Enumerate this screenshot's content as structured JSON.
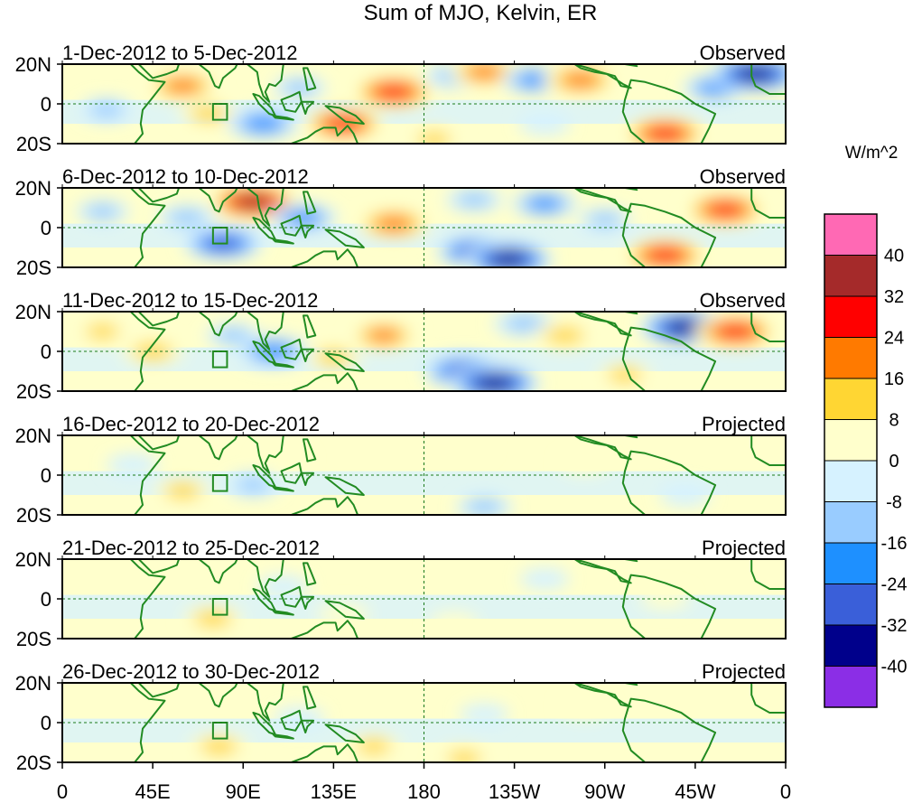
{
  "chart_data": {
    "type": "heatmap",
    "title": "Sum of MJO, Kelvin, ER",
    "colorbar": {
      "label": "W/m^2",
      "colors": [
        "#8b2ee6",
        "#00008b",
        "#3a5fd9",
        "#1e90ff",
        "#99ccff",
        "#d6f2ff",
        "#ffffcc",
        "#ffd633",
        "#ff7a00",
        "#ff0000",
        "#a52a2a",
        "#ff69b4"
      ],
      "tick_labels": [
        "-40",
        "-32",
        "-24",
        "-16",
        "-8",
        "0",
        "8",
        "16",
        "24",
        "32",
        "40"
      ]
    },
    "x_ticks": [
      "0",
      "45E",
      "90E",
      "135E",
      "180",
      "135W",
      "90W",
      "45W",
      "0"
    ],
    "y_ticks": [
      "20N",
      "0",
      "20S"
    ],
    "xlim_lon": [
      0,
      360
    ],
    "ylim_lat": [
      -20,
      20
    ],
    "panels": [
      {
        "period": "1-Dec-2012 to 5-Dec-2012",
        "status": "Observed",
        "anomalies": [
          {
            "lon": 60,
            "lat": 9,
            "value": 22
          },
          {
            "lon": 73,
            "lat": -5,
            "value": 14
          },
          {
            "lon": 22,
            "lat": -3,
            "value": -10
          },
          {
            "lon": 100,
            "lat": -10,
            "value": -24
          },
          {
            "lon": 140,
            "lat": -10,
            "value": 28
          },
          {
            "lon": 165,
            "lat": 6,
            "value": 30
          },
          {
            "lon": 118,
            "lat": 8,
            "value": -10
          },
          {
            "lon": 195,
            "lat": 14,
            "value": -14
          },
          {
            "lon": 210,
            "lat": 16,
            "value": 20
          },
          {
            "lon": 235,
            "lat": 12,
            "value": -18
          },
          {
            "lon": 258,
            "lat": 12,
            "value": 24
          },
          {
            "lon": 300,
            "lat": -15,
            "value": 30
          },
          {
            "lon": 325,
            "lat": 8,
            "value": -18
          },
          {
            "lon": 345,
            "lat": 15,
            "value": -36
          },
          {
            "lon": 185,
            "lat": -18,
            "value": 10
          },
          {
            "lon": 240,
            "lat": -10,
            "value": -8
          }
        ]
      },
      {
        "period": "6-Dec-2012 to 10-Dec-2012",
        "status": "Observed",
        "anomalies": [
          {
            "lon": 95,
            "lat": 13,
            "value": 34
          },
          {
            "lon": 80,
            "lat": -8,
            "value": -28
          },
          {
            "lon": 62,
            "lat": 5,
            "value": -14
          },
          {
            "lon": 120,
            "lat": 5,
            "value": -20
          },
          {
            "lon": 165,
            "lat": 2,
            "value": 24
          },
          {
            "lon": 205,
            "lat": -12,
            "value": -26
          },
          {
            "lon": 222,
            "lat": -16,
            "value": -34
          },
          {
            "lon": 205,
            "lat": 14,
            "value": -12
          },
          {
            "lon": 240,
            "lat": 12,
            "value": -18
          },
          {
            "lon": 300,
            "lat": -14,
            "value": 30
          },
          {
            "lon": 330,
            "lat": 9,
            "value": 28
          },
          {
            "lon": 270,
            "lat": 4,
            "value": -10
          },
          {
            "lon": 20,
            "lat": 8,
            "value": -10
          }
        ]
      },
      {
        "period": "11-Dec-2012 to 15-Dec-2012",
        "status": "Observed",
        "anomalies": [
          {
            "lon": 20,
            "lat": 10,
            "value": 10
          },
          {
            "lon": 45,
            "lat": 0,
            "value": 16
          },
          {
            "lon": 85,
            "lat": 8,
            "value": -10
          },
          {
            "lon": 105,
            "lat": 0,
            "value": -24
          },
          {
            "lon": 135,
            "lat": -3,
            "value": 12
          },
          {
            "lon": 160,
            "lat": 8,
            "value": 18
          },
          {
            "lon": 200,
            "lat": -10,
            "value": -30
          },
          {
            "lon": 215,
            "lat": -16,
            "value": -36
          },
          {
            "lon": 230,
            "lat": 14,
            "value": -16
          },
          {
            "lon": 250,
            "lat": 8,
            "value": 16
          },
          {
            "lon": 310,
            "lat": 12,
            "value": -36
          },
          {
            "lon": 335,
            "lat": 10,
            "value": 30
          },
          {
            "lon": 280,
            "lat": -12,
            "value": 10
          }
        ]
      },
      {
        "period": "16-Dec-2012 to 20-Dec-2012",
        "status": "Projected",
        "anomalies": [
          {
            "lon": 60,
            "lat": -8,
            "value": 12
          },
          {
            "lon": 110,
            "lat": 8,
            "value": 8
          },
          {
            "lon": 95,
            "lat": -5,
            "value": -10
          },
          {
            "lon": 200,
            "lat": 14,
            "value": 8
          },
          {
            "lon": 210,
            "lat": -16,
            "value": -12
          },
          {
            "lon": 260,
            "lat": 6,
            "value": 6
          },
          {
            "lon": 310,
            "lat": -10,
            "value": -8
          },
          {
            "lon": 35,
            "lat": 5,
            "value": -8
          }
        ]
      },
      {
        "period": "21-Dec-2012 to 25-Dec-2012",
        "status": "Projected",
        "anomalies": [
          {
            "lon": 75,
            "lat": -10,
            "value": 14
          },
          {
            "lon": 110,
            "lat": 6,
            "value": -8
          },
          {
            "lon": 140,
            "lat": -8,
            "value": 8
          },
          {
            "lon": 195,
            "lat": -12,
            "value": 6
          },
          {
            "lon": 240,
            "lat": 10,
            "value": -6
          },
          {
            "lon": 300,
            "lat": 0,
            "value": 6
          }
        ]
      },
      {
        "period": "26-Dec-2012 to 30-Dec-2012",
        "status": "Projected",
        "anomalies": [
          {
            "lon": 78,
            "lat": -12,
            "value": 14
          },
          {
            "lon": 118,
            "lat": 2,
            "value": -8
          },
          {
            "lon": 155,
            "lat": -12,
            "value": 10
          },
          {
            "lon": 200,
            "lat": -18,
            "value": 10
          },
          {
            "lon": 210,
            "lat": 4,
            "value": -6
          },
          {
            "lon": 260,
            "lat": 8,
            "value": 6
          }
        ]
      }
    ]
  }
}
